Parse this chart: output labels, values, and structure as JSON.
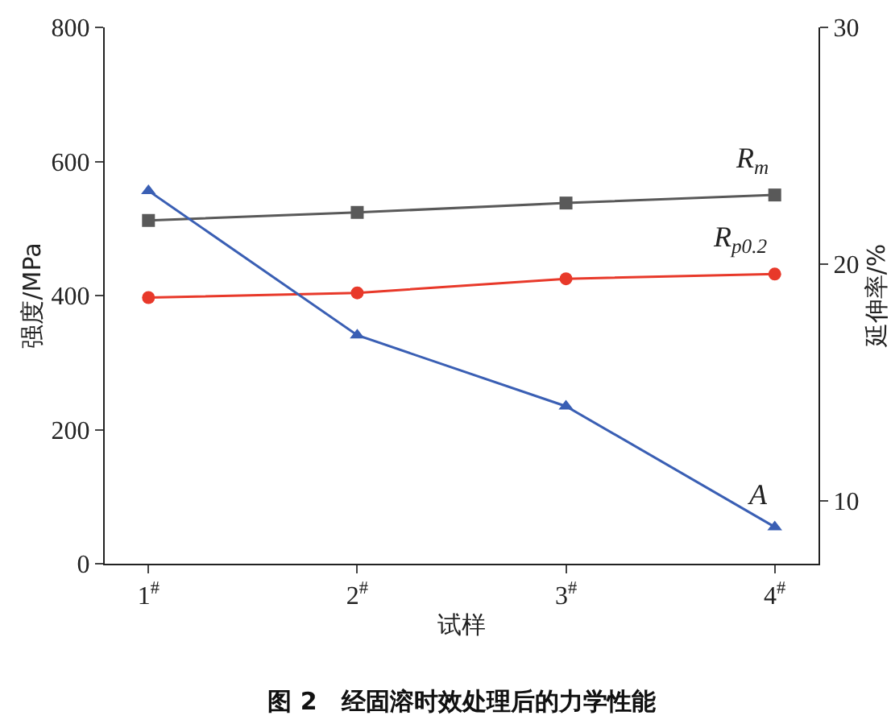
{
  "chart_data": {
    "type": "line",
    "title": "图 2　经固溶时效处理后的力学性能",
    "xlabel": "试样",
    "ylabel": "强度/MPa",
    "y2label": "延伸率/%",
    "categories": [
      "1$^{#}$",
      "2$^{#}$",
      "3$^{#}$",
      "4$^{#}$"
    ],
    "series": [
      {
        "name": "R$_{m}$",
        "color": "#595959",
        "marker": "square",
        "values": [
          512,
          524,
          538,
          550
        ]
      },
      {
        "name": "R$_{p0.2}$",
        "color": "#e8392a",
        "marker": "circle",
        "values": [
          397,
          404,
          425,
          432
        ]
      },
      {
        "name": "A",
        "color": "#3a5fb4",
        "marker": "triangle",
        "axis": "y2",
        "values": [
          23.1,
          17.0,
          14.0,
          8.9
        ]
      }
    ],
    "ylim": [
      0,
      800
    ],
    "yticks": [
      0,
      200,
      400,
      600,
      800
    ],
    "y2lim": [
      7.35,
      30
    ],
    "y2ticks": [
      10,
      20,
      30
    ],
    "grid": false,
    "legend": false
  }
}
